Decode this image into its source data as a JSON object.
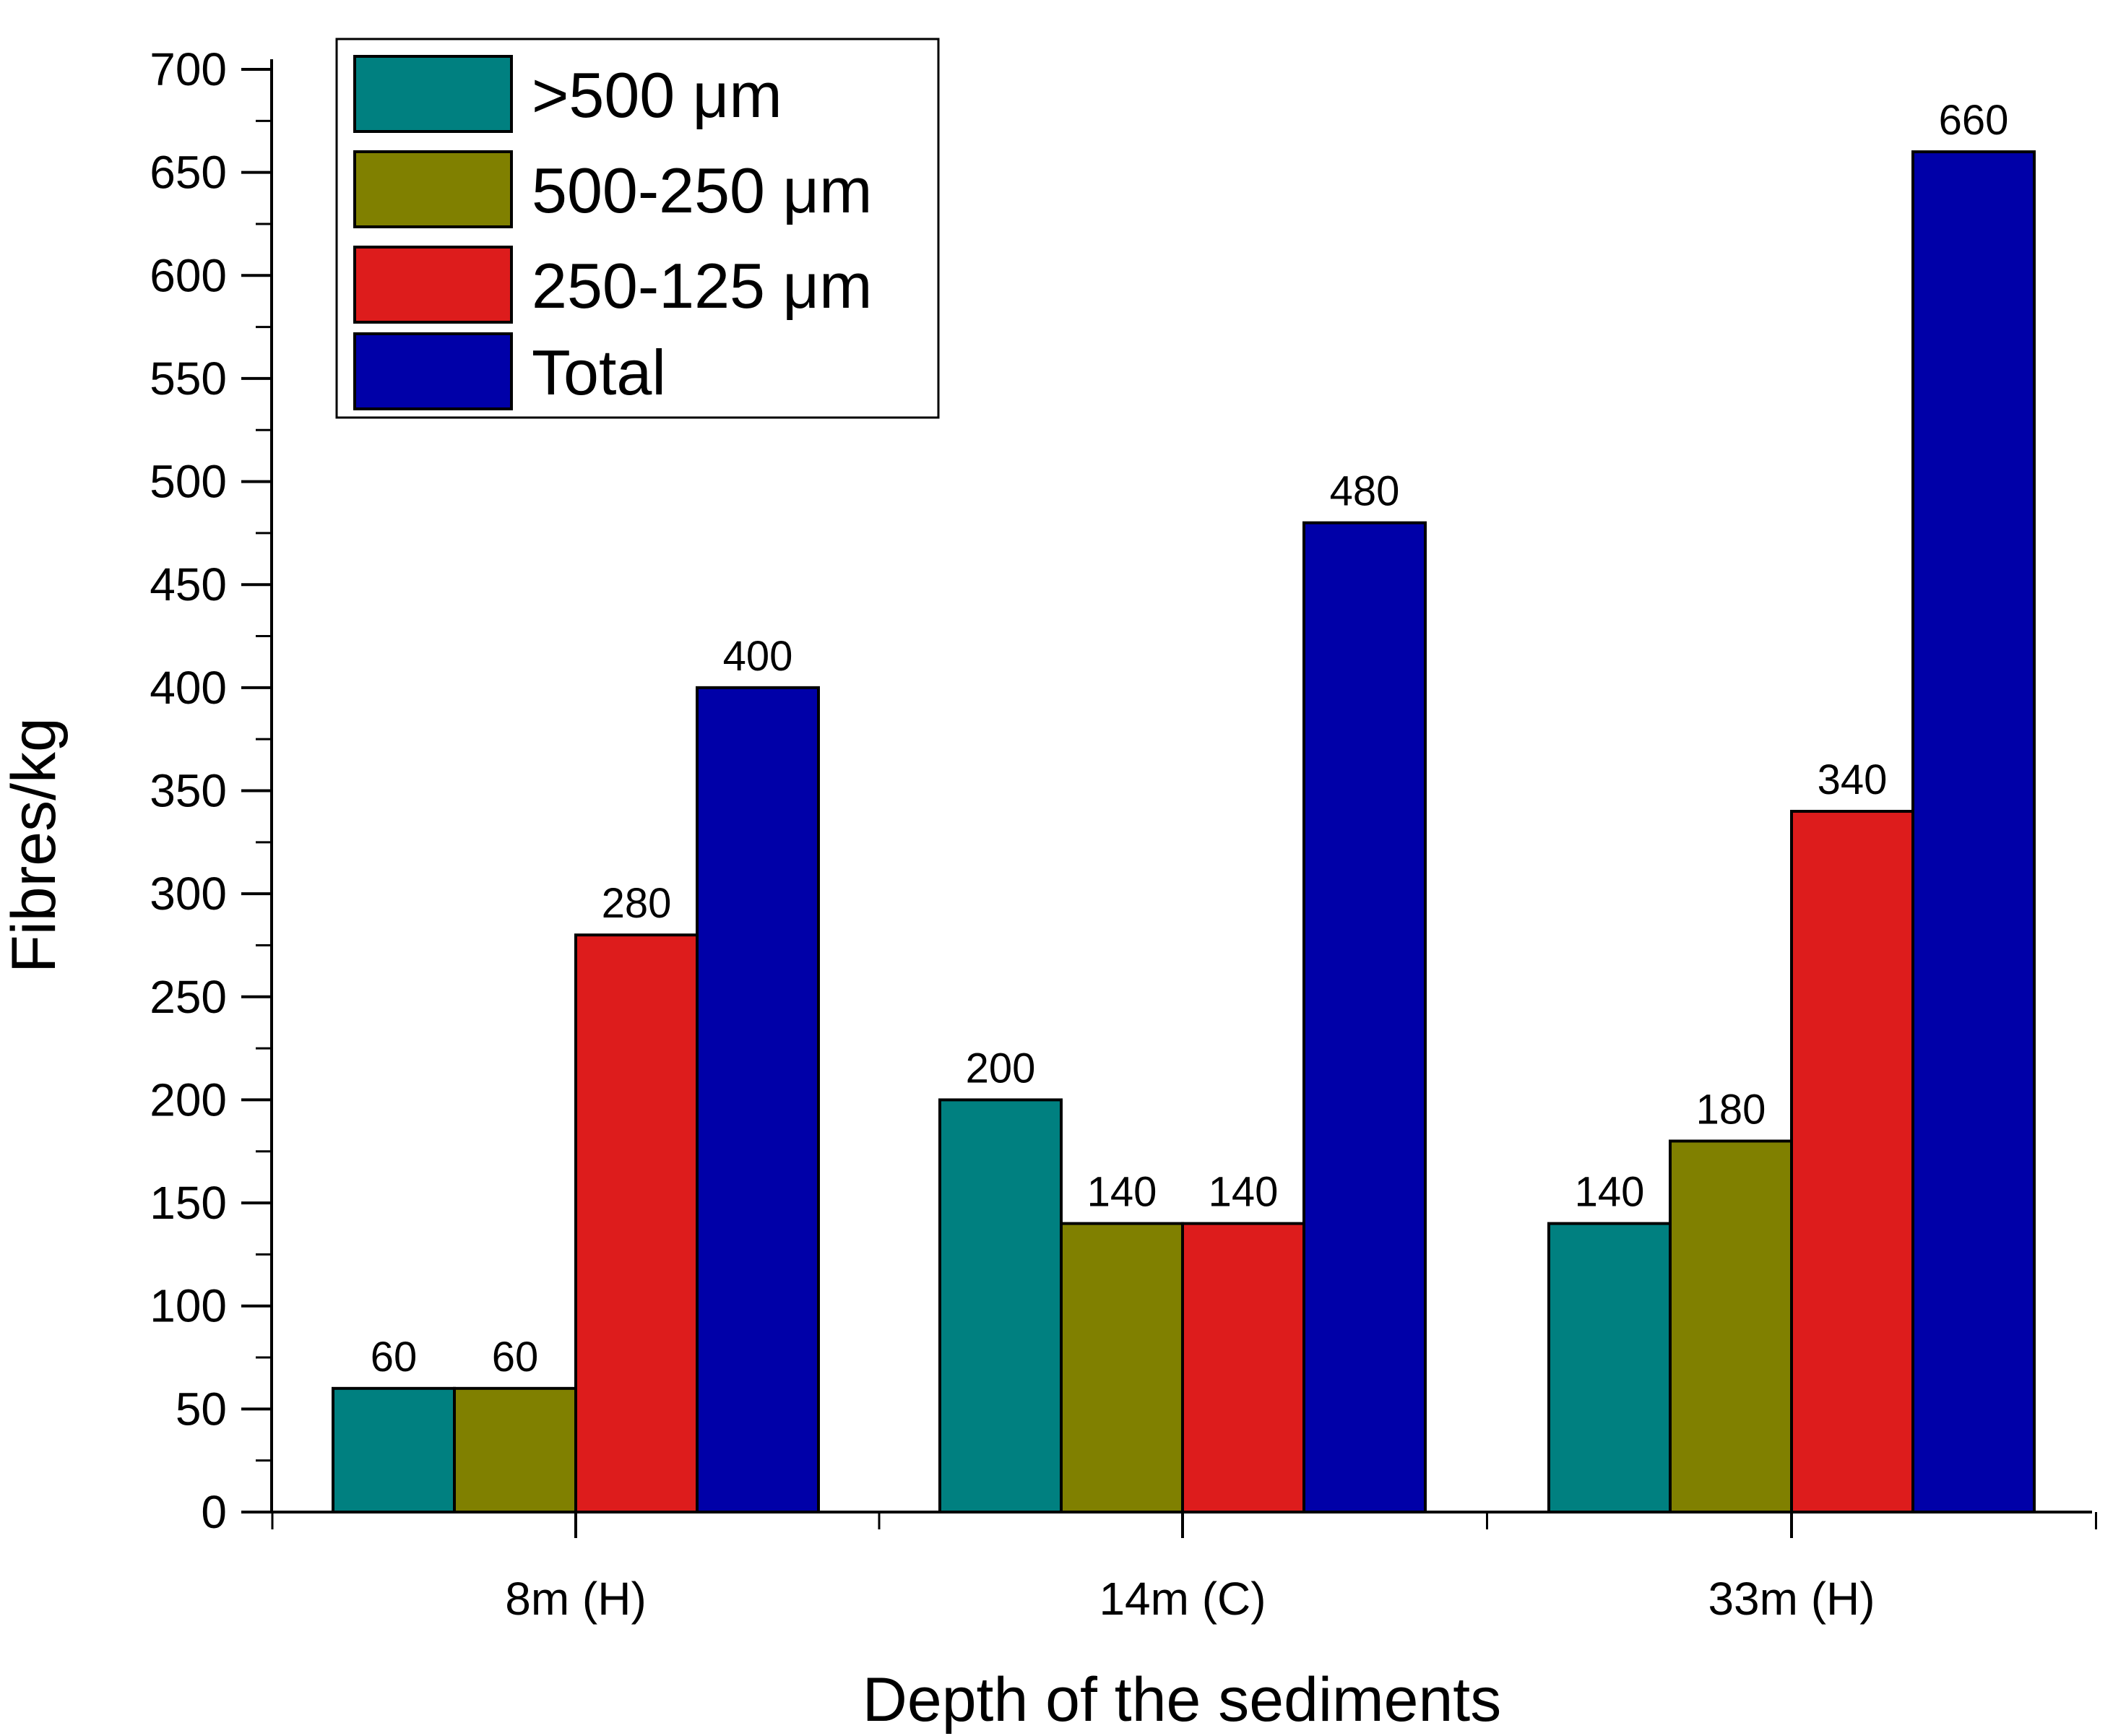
{
  "chart_data": {
    "type": "bar",
    "title": "",
    "xlabel": "Depth of the sediments",
    "ylabel": "Fibres/kg",
    "ylim": [
      0,
      700
    ],
    "yticks": [
      0,
      50,
      100,
      150,
      200,
      250,
      300,
      350,
      400,
      450,
      500,
      550,
      600,
      650,
      700
    ],
    "grid": false,
    "legend_position": "top-left",
    "categories": [
      "8m (H)",
      "14m (C)",
      "33m (H)"
    ],
    "series": [
      {
        "name": ">500 μm",
        "color": "#008080",
        "values": [
          60,
          200,
          140
        ]
      },
      {
        "name": "500-250 μm",
        "color": "#808000",
        "values": [
          60,
          140,
          180
        ]
      },
      {
        "name": "250-125 μm",
        "color": "#dd1c1c",
        "values": [
          280,
          140,
          340
        ]
      },
      {
        "name": "Total",
        "color": "#0000a8",
        "values": [
          400,
          480,
          660
        ]
      }
    ]
  }
}
